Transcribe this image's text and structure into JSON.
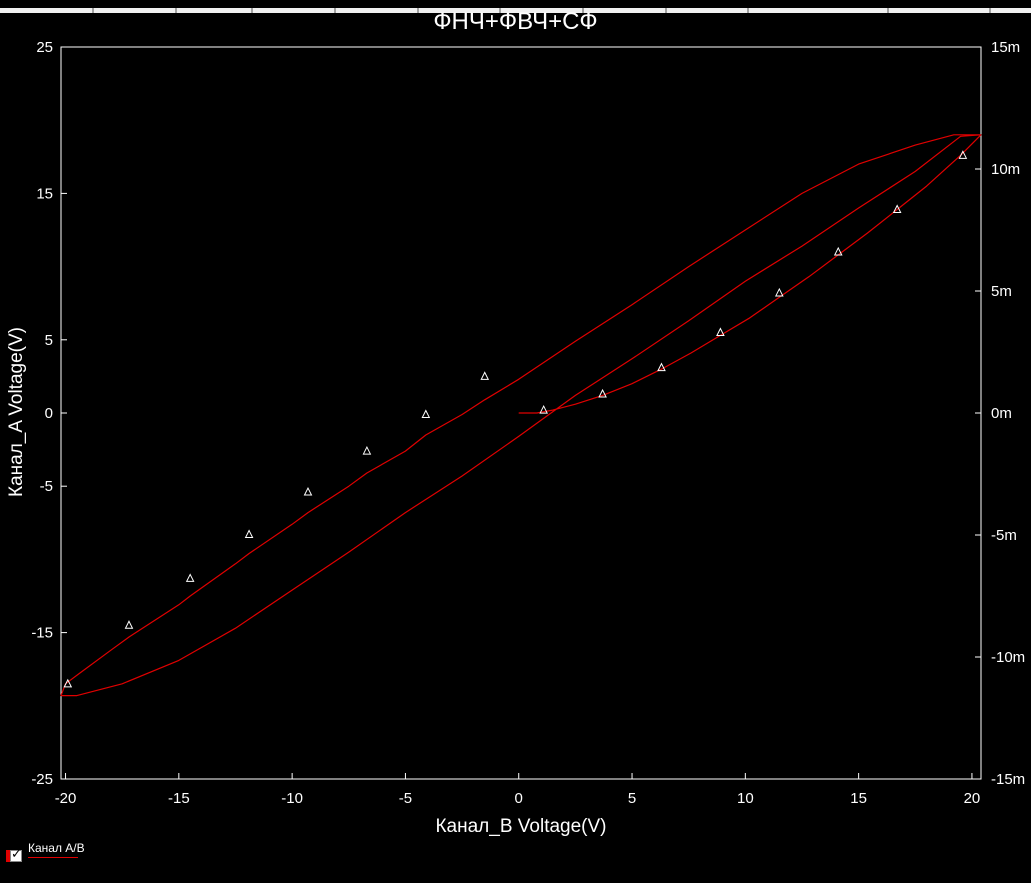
{
  "window": {
    "title": "ФНЧ+ФВЧ+СФ"
  },
  "legend": {
    "label": "Канал A/B",
    "checked": true
  },
  "colors": {
    "background": "#000000",
    "axes": "#ffffff",
    "trace": "#e00000",
    "marker": "#ffffff"
  },
  "chart_data": {
    "type": "line",
    "title": "ФНЧ+ФВЧ+СФ",
    "xlabel": "Канал_B Voltage(V)",
    "ylabel": "Канал_A Voltage(V)",
    "xlim": [
      -20.2,
      20.4
    ],
    "ylim": [
      -25,
      25
    ],
    "y2lim": [
      -15,
      15
    ],
    "x_ticks": [
      -20,
      -15,
      -10,
      -5,
      0,
      5,
      10,
      15,
      20
    ],
    "x_tick_labels": [
      "-20",
      "-15",
      "-10",
      "-5",
      "0",
      "5",
      "10",
      "15",
      "20"
    ],
    "y_ticks": [
      25,
      15,
      5,
      0,
      -5,
      -15,
      -25
    ],
    "y_tick_labels": [
      "25",
      "15",
      "5",
      "0",
      "-5",
      "-15",
      "-25"
    ],
    "y2_ticks": [
      15,
      10,
      5,
      0,
      -5,
      -10,
      -15
    ],
    "y2_tick_labels": [
      "15m",
      "10m",
      "5m",
      "0m",
      "-5m",
      "-10m",
      "-15m"
    ],
    "grid": false,
    "legend_position": "bottom-left",
    "series": [
      {
        "name": "Канал A/B",
        "color": "#e00000",
        "points": [
          [
            0.0,
            0.0
          ],
          [
            0.8,
            0.0
          ],
          [
            1.5,
            0.2
          ],
          [
            2.5,
            0.6
          ],
          [
            3.7,
            1.2
          ],
          [
            5.0,
            2.0
          ],
          [
            6.3,
            3.0
          ],
          [
            7.6,
            4.1
          ],
          [
            8.9,
            5.3
          ],
          [
            10.2,
            6.5
          ],
          [
            11.5,
            7.9
          ],
          [
            12.8,
            9.3
          ],
          [
            14.1,
            10.8
          ],
          [
            15.4,
            12.3
          ],
          [
            16.7,
            13.9
          ],
          [
            18.0,
            15.5
          ],
          [
            19.5,
            17.6
          ],
          [
            20.4,
            19.0
          ],
          [
            19.2,
            19.0
          ],
          [
            17.5,
            18.3
          ],
          [
            15.0,
            17.0
          ],
          [
            12.5,
            15.0
          ],
          [
            10.0,
            12.5
          ],
          [
            7.5,
            10.0
          ],
          [
            5.0,
            7.4
          ],
          [
            2.5,
            4.9
          ],
          [
            0.0,
            2.3
          ],
          [
            -1.5,
            0.9
          ],
          [
            -2.5,
            -0.1
          ],
          [
            -4.1,
            -1.5
          ],
          [
            -5.0,
            -2.6
          ],
          [
            -6.7,
            -4.1
          ],
          [
            -7.5,
            -5.0
          ],
          [
            -9.3,
            -6.8
          ],
          [
            -10.0,
            -7.6
          ],
          [
            -11.9,
            -9.6
          ],
          [
            -12.5,
            -10.3
          ],
          [
            -14.5,
            -12.5
          ],
          [
            -15.0,
            -13.1
          ],
          [
            -17.2,
            -15.3
          ],
          [
            -18.0,
            -16.2
          ],
          [
            -19.4,
            -17.8
          ],
          [
            -20.0,
            -18.5
          ],
          [
            -20.2,
            -19.3
          ],
          [
            -19.5,
            -19.3
          ],
          [
            -17.5,
            -18.5
          ],
          [
            -15.0,
            -16.9
          ],
          [
            -12.5,
            -14.7
          ],
          [
            -10.0,
            -12.1
          ],
          [
            -7.5,
            -9.5
          ],
          [
            -5.0,
            -6.8
          ],
          [
            -2.5,
            -4.3
          ],
          [
            0.0,
            -1.6
          ],
          [
            2.5,
            1.2
          ],
          [
            5.0,
            3.7
          ],
          [
            7.5,
            6.3
          ],
          [
            10.0,
            9.0
          ],
          [
            12.5,
            11.4
          ],
          [
            15.0,
            14.0
          ],
          [
            17.5,
            16.5
          ],
          [
            19.5,
            18.9
          ],
          [
            20.4,
            19.0
          ]
        ],
        "markers": [
          [
            1.1,
            0.2
          ],
          [
            3.7,
            1.3
          ],
          [
            6.3,
            3.1
          ],
          [
            8.9,
            5.5
          ],
          [
            11.5,
            8.2
          ],
          [
            14.1,
            11.0
          ],
          [
            16.7,
            13.9
          ],
          [
            19.6,
            17.6
          ],
          [
            -1.5,
            2.5
          ],
          [
            -4.1,
            -0.1
          ],
          [
            -6.7,
            -2.6
          ],
          [
            -9.3,
            -5.4
          ],
          [
            -11.9,
            -8.3
          ],
          [
            -14.5,
            -11.3
          ],
          [
            -17.2,
            -14.5
          ],
          [
            -19.9,
            -18.5
          ]
        ]
      }
    ]
  }
}
